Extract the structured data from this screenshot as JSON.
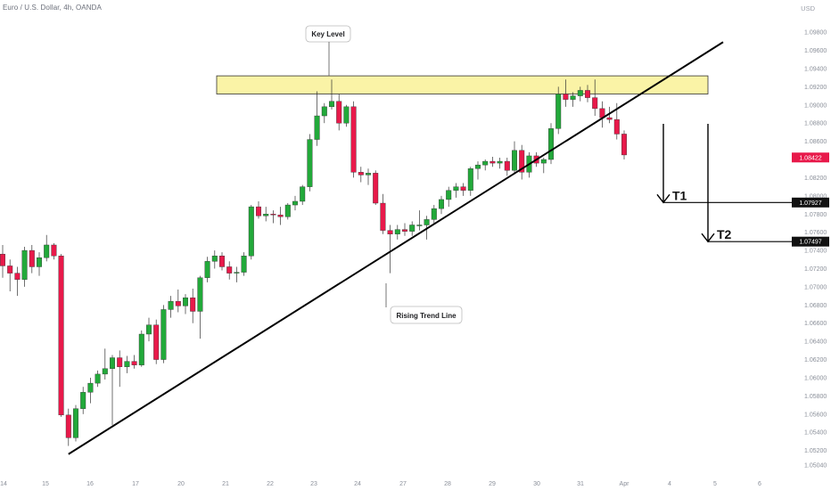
{
  "header": {
    "symbol_line": "Euro / U.S. Dollar, 4h, OANDA",
    "currency": "USD"
  },
  "colors": {
    "up": "#22a93a",
    "down": "#e8194a",
    "key_zone_fill": "#faf3a6",
    "key_zone_stroke": "#333333",
    "line": "#000000",
    "price_tag": "#e8194a",
    "target_tag": "#111111"
  },
  "chart_data": {
    "type": "candlestick",
    "title": "",
    "xlabel": "",
    "ylabel": "",
    "ylim": [
      1.0503,
      1.0986
    ],
    "y_ticks": [
      "1.09800",
      "1.09600",
      "1.09400",
      "1.09200",
      "1.09000",
      "1.08800",
      "1.08600",
      "1.08400",
      "1.08200",
      "1.08000",
      "1.07800",
      "1.07600",
      "1.07400",
      "1.07200",
      "1.07000",
      "1.06800",
      "1.06600",
      "1.06400",
      "1.06200",
      "1.06000",
      "1.05800",
      "1.05600",
      "1.05400",
      "1.05200",
      "1.05040"
    ],
    "x_ticks": [
      "14",
      "15",
      "16",
      "17",
      "20",
      "21",
      "22",
      "23",
      "24",
      "27",
      "28",
      "29",
      "30",
      "31",
      "Apr",
      "4",
      "5",
      "6"
    ],
    "candles": [
      {
        "o": 1.0736,
        "h": 1.0746,
        "l": 1.071,
        "c": 1.0723
      },
      {
        "o": 1.0723,
        "h": 1.073,
        "l": 1.0695,
        "c": 1.0715
      },
      {
        "o": 1.0715,
        "h": 1.0722,
        "l": 1.069,
        "c": 1.0708
      },
      {
        "o": 1.0708,
        "h": 1.0744,
        "l": 1.07,
        "c": 1.074
      },
      {
        "o": 1.074,
        "h": 1.0746,
        "l": 1.0715,
        "c": 1.0722
      },
      {
        "o": 1.0722,
        "h": 1.0738,
        "l": 1.0712,
        "c": 1.0732
      },
      {
        "o": 1.0732,
        "h": 1.0757,
        "l": 1.0728,
        "c": 1.0746
      },
      {
        "o": 1.0746,
        "h": 1.0748,
        "l": 1.073,
        "c": 1.0734
      },
      {
        "o": 1.0734,
        "h": 1.0736,
        "l": 1.0557,
        "c": 1.0559
      },
      {
        "o": 1.0559,
        "h": 1.0566,
        "l": 1.0525,
        "c": 1.0534
      },
      {
        "o": 1.0534,
        "h": 1.057,
        "l": 1.053,
        "c": 1.0566
      },
      {
        "o": 1.0566,
        "h": 1.059,
        "l": 1.056,
        "c": 1.0584
      },
      {
        "o": 1.0584,
        "h": 1.06,
        "l": 1.0572,
        "c": 1.0594
      },
      {
        "o": 1.0594,
        "h": 1.0608,
        "l": 1.059,
        "c": 1.0604
      },
      {
        "o": 1.0604,
        "h": 1.0632,
        "l": 1.0598,
        "c": 1.061
      },
      {
        "o": 1.061,
        "h": 1.0625,
        "l": 1.0548,
        "c": 1.0622
      },
      {
        "o": 1.0622,
        "h": 1.063,
        "l": 1.059,
        "c": 1.0612
      },
      {
        "o": 1.0612,
        "h": 1.0624,
        "l": 1.0605,
        "c": 1.0618
      },
      {
        "o": 1.0618,
        "h": 1.0625,
        "l": 1.061,
        "c": 1.0614
      },
      {
        "o": 1.0614,
        "h": 1.0652,
        "l": 1.0612,
        "c": 1.0648
      },
      {
        "o": 1.0648,
        "h": 1.0666,
        "l": 1.064,
        "c": 1.0658
      },
      {
        "o": 1.0658,
        "h": 1.0664,
        "l": 1.0615,
        "c": 1.062
      },
      {
        "o": 1.062,
        "h": 1.068,
        "l": 1.0616,
        "c": 1.0675
      },
      {
        "o": 1.0675,
        "h": 1.069,
        "l": 1.0666,
        "c": 1.0684
      },
      {
        "o": 1.0684,
        "h": 1.0697,
        "l": 1.0672,
        "c": 1.0679
      },
      {
        "o": 1.0679,
        "h": 1.0692,
        "l": 1.067,
        "c": 1.0688
      },
      {
        "o": 1.0688,
        "h": 1.0698,
        "l": 1.066,
        "c": 1.0673
      },
      {
        "o": 1.0673,
        "h": 1.0712,
        "l": 1.0643,
        "c": 1.071
      },
      {
        "o": 1.071,
        "h": 1.0733,
        "l": 1.0705,
        "c": 1.0728
      },
      {
        "o": 1.0728,
        "h": 1.074,
        "l": 1.072,
        "c": 1.0734
      },
      {
        "o": 1.0734,
        "h": 1.0738,
        "l": 1.0718,
        "c": 1.0722
      },
      {
        "o": 1.0722,
        "h": 1.0728,
        "l": 1.0708,
        "c": 1.0715
      },
      {
        "o": 1.0715,
        "h": 1.0722,
        "l": 1.0705,
        "c": 1.0716
      },
      {
        "o": 1.0716,
        "h": 1.0738,
        "l": 1.0712,
        "c": 1.0734
      },
      {
        "o": 1.0734,
        "h": 1.079,
        "l": 1.073,
        "c": 1.0788
      },
      {
        "o": 1.0788,
        "h": 1.0794,
        "l": 1.0775,
        "c": 1.0778
      },
      {
        "o": 1.0778,
        "h": 1.0788,
        "l": 1.0772,
        "c": 1.078
      },
      {
        "o": 1.078,
        "h": 1.0784,
        "l": 1.077,
        "c": 1.0779
      },
      {
        "o": 1.0779,
        "h": 1.0788,
        "l": 1.0768,
        "c": 1.0777
      },
      {
        "o": 1.0777,
        "h": 1.0792,
        "l": 1.0774,
        "c": 1.079
      },
      {
        "o": 1.079,
        "h": 1.08,
        "l": 1.0784,
        "c": 1.0794
      },
      {
        "o": 1.0794,
        "h": 1.0812,
        "l": 1.079,
        "c": 1.081
      },
      {
        "o": 1.081,
        "h": 1.0868,
        "l": 1.0805,
        "c": 1.0862
      },
      {
        "o": 1.0862,
        "h": 1.0915,
        "l": 1.0855,
        "c": 1.0888
      },
      {
        "o": 1.0888,
        "h": 1.0902,
        "l": 1.088,
        "c": 1.0898
      },
      {
        "o": 1.0898,
        "h": 1.0928,
        "l": 1.0895,
        "c": 1.0904
      },
      {
        "o": 1.0904,
        "h": 1.0912,
        "l": 1.0872,
        "c": 1.088
      },
      {
        "o": 1.088,
        "h": 1.09,
        "l": 1.0876,
        "c": 1.0898
      },
      {
        "o": 1.0898,
        "h": 1.0904,
        "l": 1.082,
        "c": 1.0826
      },
      {
        "o": 1.0826,
        "h": 1.0832,
        "l": 1.0815,
        "c": 1.0823
      },
      {
        "o": 1.0823,
        "h": 1.083,
        "l": 1.0812,
        "c": 1.0825
      },
      {
        "o": 1.0825,
        "h": 1.0828,
        "l": 1.079,
        "c": 1.0792
      },
      {
        "o": 1.0792,
        "h": 1.0802,
        "l": 1.0758,
        "c": 1.0762
      },
      {
        "o": 1.0762,
        "h": 1.0768,
        "l": 1.0715,
        "c": 1.0758
      },
      {
        "o": 1.0758,
        "h": 1.0768,
        "l": 1.0752,
        "c": 1.0763
      },
      {
        "o": 1.0763,
        "h": 1.077,
        "l": 1.0756,
        "c": 1.0761
      },
      {
        "o": 1.0761,
        "h": 1.0772,
        "l": 1.0756,
        "c": 1.0768
      },
      {
        "o": 1.0768,
        "h": 1.0784,
        "l": 1.0762,
        "c": 1.0768
      },
      {
        "o": 1.0768,
        "h": 1.0778,
        "l": 1.0752,
        "c": 1.0774
      },
      {
        "o": 1.0774,
        "h": 1.079,
        "l": 1.077,
        "c": 1.0786
      },
      {
        "o": 1.0786,
        "h": 1.08,
        "l": 1.078,
        "c": 1.0796
      },
      {
        "o": 1.0796,
        "h": 1.081,
        "l": 1.0788,
        "c": 1.0806
      },
      {
        "o": 1.0806,
        "h": 1.0814,
        "l": 1.0798,
        "c": 1.081
      },
      {
        "o": 1.081,
        "h": 1.0814,
        "l": 1.08,
        "c": 1.0806
      },
      {
        "o": 1.0806,
        "h": 1.0832,
        "l": 1.08,
        "c": 1.083
      },
      {
        "o": 1.083,
        "h": 1.0838,
        "l": 1.0818,
        "c": 1.0834
      },
      {
        "o": 1.0834,
        "h": 1.084,
        "l": 1.0828,
        "c": 1.0838
      },
      {
        "o": 1.0838,
        "h": 1.0843,
        "l": 1.0832,
        "c": 1.0836
      },
      {
        "o": 1.0836,
        "h": 1.0842,
        "l": 1.083,
        "c": 1.0838
      },
      {
        "o": 1.0838,
        "h": 1.0842,
        "l": 1.0822,
        "c": 1.0828
      },
      {
        "o": 1.0828,
        "h": 1.086,
        "l": 1.0825,
        "c": 1.085
      },
      {
        "o": 1.085,
        "h": 1.0856,
        "l": 1.0818,
        "c": 1.0826
      },
      {
        "o": 1.0826,
        "h": 1.0848,
        "l": 1.082,
        "c": 1.0844
      },
      {
        "o": 1.0844,
        "h": 1.0848,
        "l": 1.0832,
        "c": 1.0836
      },
      {
        "o": 1.0836,
        "h": 1.0842,
        "l": 1.0825,
        "c": 1.084
      },
      {
        "o": 1.084,
        "h": 1.088,
        "l": 1.0835,
        "c": 1.0874
      },
      {
        "o": 1.0874,
        "h": 1.092,
        "l": 1.0868,
        "c": 1.0912
      },
      {
        "o": 1.0912,
        "h": 1.0928,
        "l": 1.0898,
        "c": 1.0906
      },
      {
        "o": 1.0906,
        "h": 1.0914,
        "l": 1.0898,
        "c": 1.091
      },
      {
        "o": 1.091,
        "h": 1.092,
        "l": 1.0904,
        "c": 1.0916
      },
      {
        "o": 1.0916,
        "h": 1.0922,
        "l": 1.0903,
        "c": 1.0908
      },
      {
        "o": 1.0908,
        "h": 1.0928,
        "l": 1.0888,
        "c": 1.0896
      },
      {
        "o": 1.0896,
        "h": 1.0904,
        "l": 1.0875,
        "c": 1.0886
      },
      {
        "o": 1.0886,
        "h": 1.0898,
        "l": 1.088,
        "c": 1.0884
      },
      {
        "o": 1.0884,
        "h": 1.0902,
        "l": 1.0862,
        "c": 1.0868
      },
      {
        "o": 1.0868,
        "h": 1.0872,
        "l": 1.084,
        "c": 1.0845
      }
    ],
    "key_zone": {
      "label": "Key Level",
      "low": 1.0912,
      "high": 1.0932
    },
    "trend_line": {
      "label": "Rising Trend Line",
      "from": {
        "bar": 9,
        "price": 1.0516
      },
      "to": {
        "bar": 92,
        "price": 1.0936
      }
    },
    "current_price": "1.08422",
    "targets": [
      {
        "label": "T1",
        "price": 1.07927,
        "price_label": "1.07927"
      },
      {
        "label": "T2",
        "price": 1.07497,
        "price_label": "1.07497"
      }
    ]
  }
}
